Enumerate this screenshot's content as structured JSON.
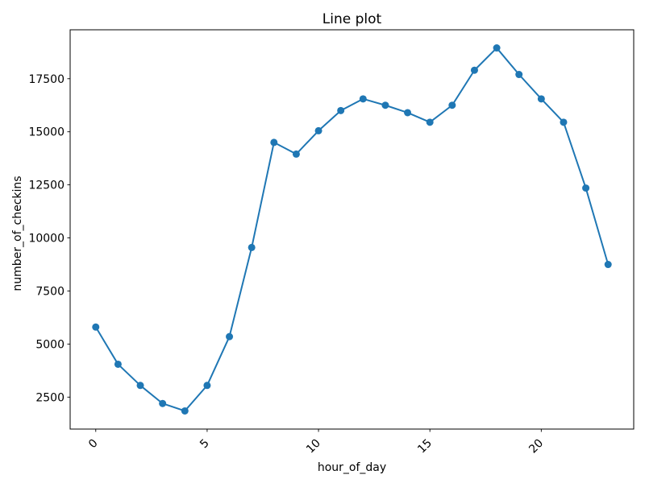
{
  "chart_data": {
    "type": "line",
    "title": "Line plot",
    "xlabel": "hour_of_day",
    "ylabel": "number_of_checkins",
    "x": [
      0,
      1,
      2,
      3,
      4,
      5,
      6,
      7,
      8,
      9,
      10,
      11,
      12,
      13,
      14,
      15,
      16,
      17,
      18,
      19,
      20,
      21,
      22,
      23
    ],
    "y": [
      5800,
      4050,
      3050,
      2200,
      1850,
      3050,
      5350,
      9550,
      14500,
      13950,
      15050,
      16000,
      16550,
      16250,
      15900,
      15450,
      16250,
      17900,
      18950,
      17700,
      16550,
      15450,
      12350,
      8750
    ],
    "xticks": [
      0,
      5,
      10,
      15,
      20
    ],
    "yticks": [
      2500,
      5000,
      7500,
      10000,
      12500,
      15000,
      17500
    ],
    "xlim": [
      -1.15,
      24.15
    ],
    "ylim": [
      995,
      19805
    ],
    "xtick_rotation": 45,
    "grid": false,
    "legend": "none",
    "line_color": "#1f77b4",
    "marker": "circle",
    "axis_color": "#000000",
    "background_color": "#ffffff"
  }
}
